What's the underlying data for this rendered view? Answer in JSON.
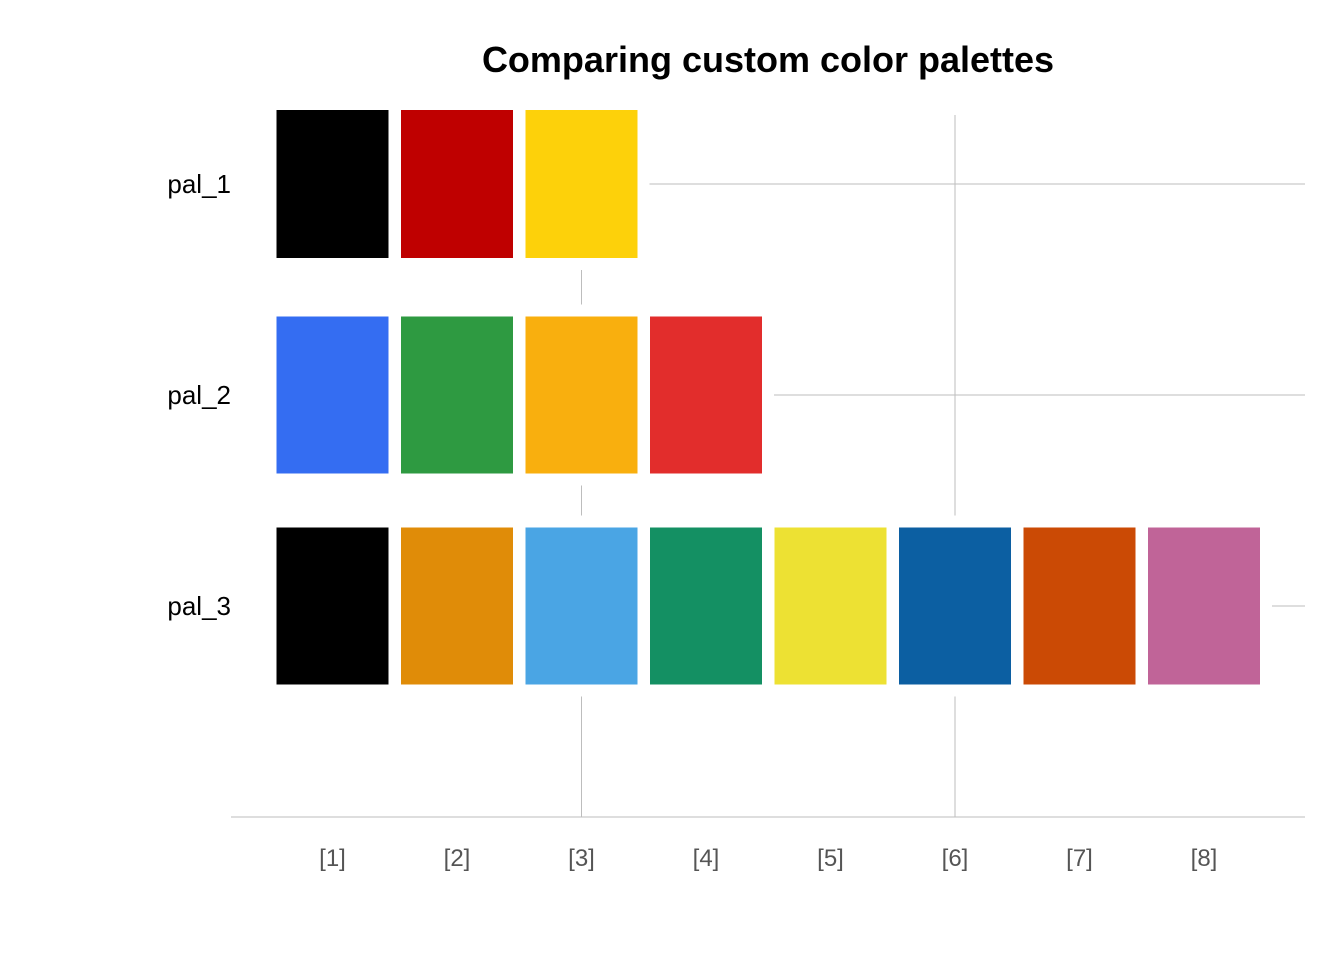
{
  "chart_data": {
    "type": "heatmap",
    "title": "Comparing custom color palettes",
    "xlabel": "",
    "ylabel": "",
    "x_tick_labels": [
      "[1]",
      "[2]",
      "[3]",
      "[4]",
      "[5]",
      "[6]",
      "[7]",
      "[8]"
    ],
    "grid": true,
    "legend": "none",
    "palettes": [
      {
        "name": "pal_1",
        "colors": [
          "#000000",
          "#BF0000",
          "#FDD10A"
        ]
      },
      {
        "name": "pal_2",
        "colors": [
          "#346DF2",
          "#2E9A41",
          "#F9AF0E",
          "#E22D2C"
        ]
      },
      {
        "name": "pal_3",
        "colors": [
          "#000000",
          "#E08C08",
          "#4AA5E4",
          "#149063",
          "#EDE133",
          "#0C5FA2",
          "#CB4A05",
          "#C06498"
        ]
      }
    ]
  }
}
